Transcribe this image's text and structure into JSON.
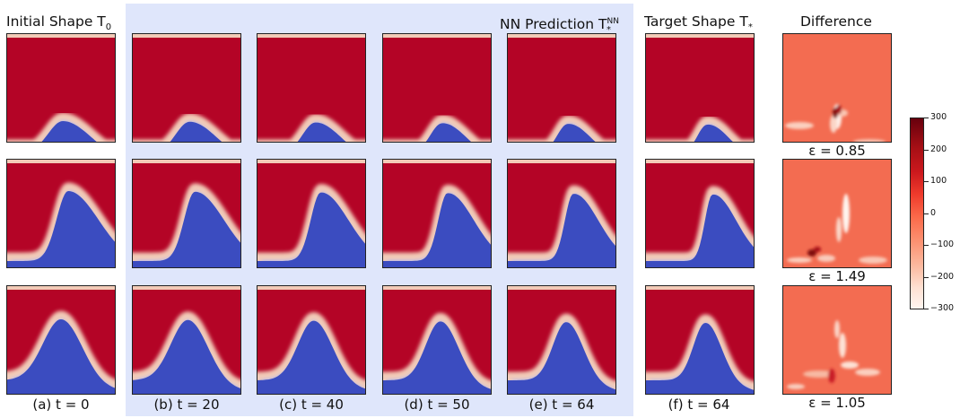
{
  "titles": {
    "initial": "Initial Shape T",
    "initial_sub": "0",
    "nn": "NN Prediction T",
    "nn_sup": "NN",
    "nn_sub": "*",
    "target": "Target Shape T",
    "target_sub": "*",
    "difference": "Difference"
  },
  "columns": [
    {
      "caption": "(a) t = 0"
    },
    {
      "caption": "(b) t = 20"
    },
    {
      "caption": "(c) t = 40"
    },
    {
      "caption": "(d) t = 50"
    },
    {
      "caption": "(e) t = 64"
    },
    {
      "caption": "(f) t = 64"
    }
  ],
  "errors": [
    "ε = 0.85",
    "ε = 1.49",
    "ε = 1.05"
  ],
  "colorbar": {
    "ticks": [
      "300",
      "200",
      "100",
      "0",
      "−100",
      "−200",
      "−300"
    ],
    "colors": [
      "#67000d",
      "#cb181d",
      "#fb6a4a",
      "#fcbba1",
      "#fff5f0"
    ]
  },
  "colors": {
    "hot": "#b40426",
    "cold": "#3b4cc0",
    "edge": "#f2cbb7",
    "diff_bg": "#f36c51",
    "highlight": "#dfe6fb"
  }
}
